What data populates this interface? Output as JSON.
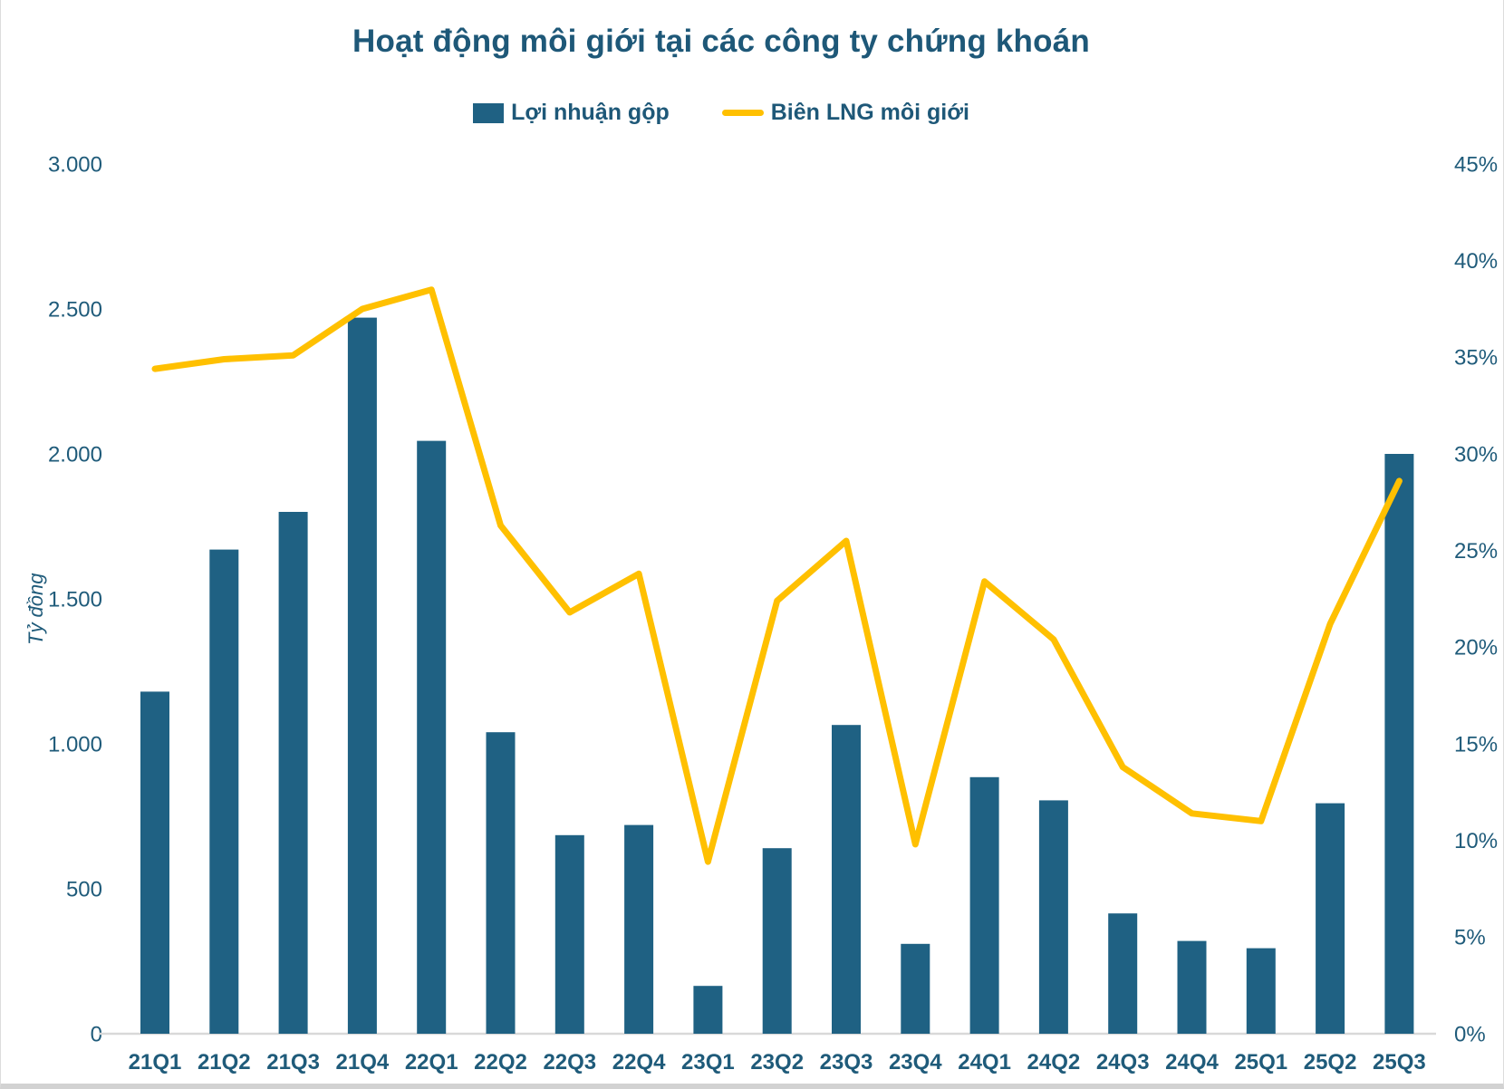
{
  "title": "Hoạt động môi giới tại các công ty chứng khoán",
  "chart_data": {
    "type": "combo-bar-line",
    "title": "Hoạt động môi giới tại các công ty chứng khoán",
    "categories": [
      "21Q1",
      "21Q2",
      "21Q3",
      "21Q4",
      "22Q1",
      "22Q2",
      "22Q3",
      "22Q4",
      "23Q1",
      "23Q2",
      "23Q3",
      "23Q4",
      "24Q1",
      "24Q2",
      "24Q3",
      "24Q4",
      "25Q1",
      "25Q2",
      "25Q3"
    ],
    "series": [
      {
        "name": "Lợi nhuận gộp",
        "type": "bar",
        "axis": "left",
        "color": "#1F6183",
        "values": [
          1180,
          1670,
          1800,
          2470,
          2045,
          1040,
          685,
          720,
          165,
          640,
          1065,
          310,
          885,
          805,
          415,
          320,
          295,
          795,
          2000
        ]
      },
      {
        "name": "Biên LNG môi giới",
        "type": "line",
        "axis": "right",
        "color": "#FFC000",
        "values": [
          34.4,
          34.9,
          35.1,
          37.5,
          38.5,
          26.3,
          21.8,
          23.8,
          8.9,
          22.4,
          25.5,
          9.8,
          23.4,
          20.4,
          13.8,
          11.4,
          11.0,
          21.2,
          28.6
        ]
      }
    ],
    "left_axis": {
      "label": "Tỷ đồng",
      "min": 0,
      "max": 3000,
      "step": 500,
      "tick_labels": [
        "0",
        "500",
        "1.000",
        "1.500",
        "2.000",
        "2.500",
        "3.000"
      ]
    },
    "right_axis": {
      "min": 0,
      "max": 45,
      "step": 5,
      "tick_labels": [
        "0%",
        "5%",
        "10%",
        "15%",
        "20%",
        "25%",
        "30%",
        "35%",
        "40%",
        "45%"
      ]
    },
    "grid": false,
    "legend_position": "top"
  },
  "colors": {
    "text": "#1F5B7A",
    "title_text": "#1E5878",
    "axis_line": "#D9D9D9",
    "bar": "#1F6183",
    "line": "#FFC000"
  }
}
